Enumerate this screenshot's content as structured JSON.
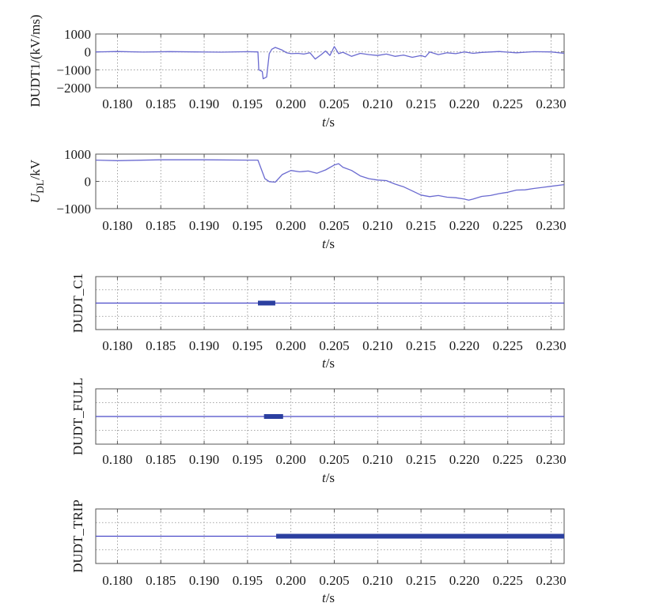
{
  "chart_data": [
    {
      "type": "line",
      "ylabel": "DUDT1/(kV/ms)",
      "xlabel": "t/s",
      "xlabel_italic": "t",
      "xlabel_rest": "/s",
      "xlim": [
        0.1775,
        0.2315
      ],
      "ylim": [
        -2000,
        1000
      ],
      "x_ticks": [
        "0.180",
        "0.185",
        "0.190",
        "0.195",
        "0.200",
        "0.205",
        "0.210",
        "0.215",
        "0.220",
        "0.225",
        "0.230"
      ],
      "y_ticks": [
        "1000",
        "0",
        "−1000",
        "−2000"
      ],
      "y_tick_values": [
        1000,
        0,
        -1000,
        -2000
      ],
      "grid": true,
      "color": "#6a6ad0",
      "series": [
        {
          "x": [
            0.1775,
            0.18,
            0.183,
            0.186,
            0.189,
            0.192,
            0.195,
            0.1962,
            0.1963,
            0.1967,
            0.1968,
            0.1972,
            0.1975,
            0.1978,
            0.1982,
            0.199,
            0.1995,
            0.2,
            0.2008,
            0.2015,
            0.2022,
            0.2028,
            0.2035,
            0.204,
            0.2045,
            0.205,
            0.2055,
            0.206,
            0.207,
            0.208,
            0.209,
            0.21,
            0.211,
            0.212,
            0.213,
            0.214,
            0.215,
            0.2155,
            0.216,
            0.217,
            0.218,
            0.219,
            0.22,
            0.221,
            0.222,
            0.224,
            0.226,
            0.228,
            0.23,
            0.2315
          ],
          "y": [
            0,
            20,
            -10,
            15,
            0,
            -15,
            10,
            0,
            -1000,
            -1100,
            -1500,
            -1400,
            -100,
            150,
            250,
            100,
            -50,
            -100,
            -80,
            -120,
            -50,
            -400,
            -150,
            50,
            -200,
            300,
            -100,
            -20,
            -250,
            -80,
            -150,
            -200,
            -120,
            -250,
            -180,
            -300,
            -200,
            -280,
            0,
            -150,
            -50,
            -100,
            0,
            -80,
            -30,
            20,
            -50,
            10,
            0,
            -80
          ]
        }
      ]
    },
    {
      "type": "line",
      "ylabel": "UDL/kV",
      "ylabel_main": "U",
      "ylabel_sub": "DL",
      "ylabel_rest": "/kV",
      "xlabel": "t/s",
      "xlabel_italic": "t",
      "xlabel_rest": "/s",
      "xlim": [
        0.1775,
        0.2315
      ],
      "ylim": [
        -1000,
        1000
      ],
      "x_ticks": [
        "0.180",
        "0.185",
        "0.190",
        "0.195",
        "0.200",
        "0.205",
        "0.210",
        "0.215",
        "0.220",
        "0.225",
        "0.230"
      ],
      "y_ticks": [
        "1000",
        "0",
        "−1000"
      ],
      "y_tick_values": [
        1000,
        0,
        -1000
      ],
      "grid": true,
      "color": "#6a6ad0",
      "series": [
        {
          "x": [
            0.1775,
            0.18,
            0.185,
            0.19,
            0.195,
            0.1962,
            0.197,
            0.1975,
            0.1982,
            0.199,
            0.2,
            0.201,
            0.202,
            0.203,
            0.204,
            0.205,
            0.2055,
            0.206,
            0.207,
            0.208,
            0.209,
            0.21,
            0.211,
            0.212,
            0.213,
            0.214,
            0.215,
            0.216,
            0.217,
            0.218,
            0.219,
            0.22,
            0.2205,
            0.221,
            0.222,
            0.223,
            0.224,
            0.225,
            0.226,
            0.227,
            0.228,
            0.229,
            0.23,
            0.2315
          ],
          "y": [
            780,
            760,
            790,
            790,
            780,
            780,
            100,
            -10,
            -30,
            250,
            400,
            350,
            380,
            300,
            420,
            600,
            650,
            520,
            400,
            200,
            100,
            50,
            30,
            -100,
            -200,
            -350,
            -500,
            -560,
            -520,
            -580,
            -600,
            -650,
            -690,
            -650,
            -550,
            -520,
            -450,
            -400,
            -320,
            -310,
            -260,
            -220,
            -180,
            -120
          ]
        }
      ]
    },
    {
      "type": "line",
      "ylabel": "DUDT_C1",
      "xlabel": "t/s",
      "xlabel_italic": "t",
      "xlabel_rest": "/s",
      "xlim": [
        0.1775,
        0.2315
      ],
      "ylim": [
        -1,
        1
      ],
      "x_ticks": [
        "0.180",
        "0.185",
        "0.190",
        "0.195",
        "0.200",
        "0.205",
        "0.210",
        "0.215",
        "0.220",
        "0.225",
        "0.230"
      ],
      "y_ticks": [],
      "grid": true,
      "color": "#4a4ac8",
      "signal_level": 0,
      "pulse": [
        0.1962,
        0.1982
      ]
    },
    {
      "type": "line",
      "ylabel": "DUDT_FULL",
      "xlabel": "t/s",
      "xlabel_italic": "t",
      "xlabel_rest": "/s",
      "xlim": [
        0.1775,
        0.2315
      ],
      "ylim": [
        -1,
        1
      ],
      "x_ticks": [
        "0.180",
        "0.185",
        "0.190",
        "0.195",
        "0.200",
        "0.205",
        "0.210",
        "0.215",
        "0.220",
        "0.225",
        "0.230"
      ],
      "y_ticks": [],
      "grid": true,
      "color": "#4a4ac8",
      "signal_level": 0,
      "pulse": [
        0.1969,
        0.1991
      ]
    },
    {
      "type": "line",
      "ylabel": "DUDT_TRIP",
      "xlabel": "t/s",
      "xlabel_italic": "t",
      "xlabel_rest": "/s",
      "xlim": [
        0.1775,
        0.2315
      ],
      "ylim": [
        -1,
        1
      ],
      "x_ticks": [
        "0.180",
        "0.185",
        "0.190",
        "0.195",
        "0.200",
        "0.205",
        "0.210",
        "0.215",
        "0.220",
        "0.225",
        "0.230"
      ],
      "y_ticks": [],
      "grid": true,
      "color": "#4a4ac8",
      "signal_level": 0,
      "pulse": [
        0.1983,
        0.2315
      ]
    }
  ]
}
